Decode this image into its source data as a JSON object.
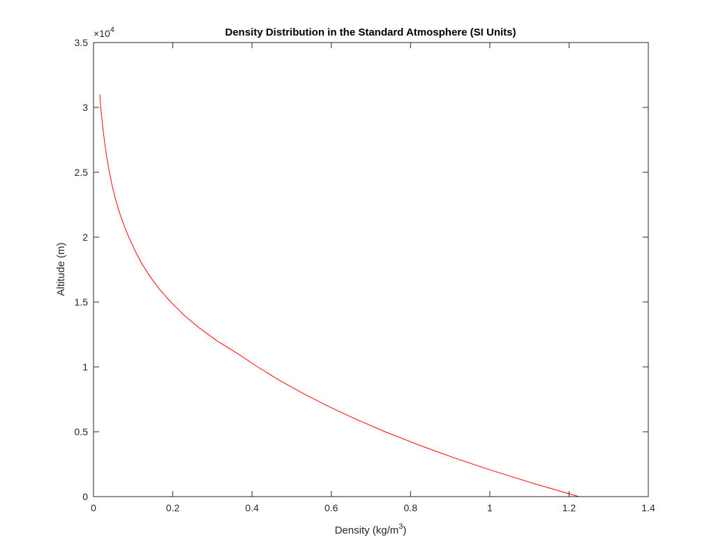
{
  "chart_data": {
    "type": "line",
    "title": "Density Distribution in the Standard Atmosphere (SI Units)",
    "xlabel": "Density (kg/m",
    "xlabel_sup": "3",
    "xlabel_tail": ")",
    "ylabel": "Altitude (m)",
    "xlim": [
      0,
      1.4
    ],
    "ylim": [
      0,
      35000
    ],
    "x_ticks": [
      0,
      0.2,
      0.4,
      0.6,
      0.8,
      1,
      1.2,
      1.4
    ],
    "x_tick_labels": [
      "0",
      "0.2",
      "0.4",
      "0.6",
      "0.8",
      "1",
      "1.2",
      "1.4"
    ],
    "y_ticks": [
      0,
      5000,
      10000,
      15000,
      20000,
      25000,
      30000,
      35000
    ],
    "y_tick_labels": [
      "0",
      "0.5",
      "1",
      "1.5",
      "2",
      "2.5",
      "3",
      "3.5"
    ],
    "y_exponent": {
      "base": "×10",
      "power": "4"
    },
    "grid": false,
    "box": true,
    "series": [
      {
        "color": "#ff0000",
        "x": [
          1.225,
          1.112,
          1.007,
          0.909,
          0.819,
          0.736,
          0.66,
          0.59,
          0.526,
          0.467,
          0.414,
          0.365,
          0.312,
          0.267,
          0.228,
          0.195,
          0.166,
          0.142,
          0.121,
          0.104,
          0.0889,
          0.0757,
          0.0645,
          0.055,
          0.0469,
          0.0401,
          0.0343,
          0.0294,
          0.0251,
          0.0215,
          0.0184,
          0.0158
        ],
        "y": [
          0,
          1000,
          2000,
          3000,
          4000,
          5000,
          6000,
          7000,
          8000,
          9000,
          10000,
          11000,
          12000,
          13000,
          14000,
          15000,
          16000,
          17000,
          18000,
          19000,
          20000,
          21000,
          22000,
          23000,
          24000,
          25000,
          26000,
          27000,
          28000,
          29000,
          30000,
          31000
        ]
      }
    ]
  }
}
